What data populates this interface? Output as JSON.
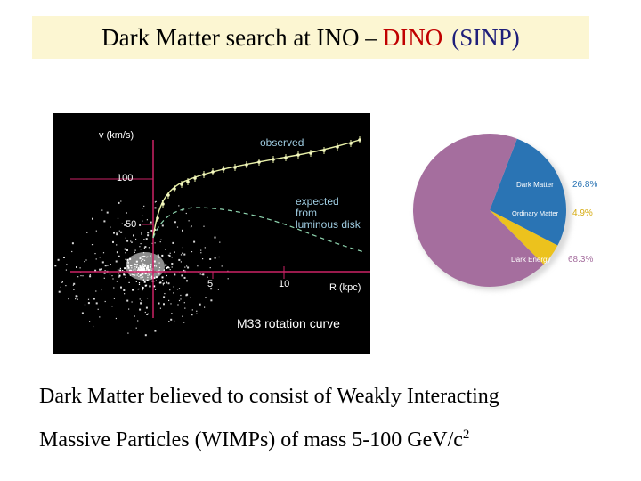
{
  "title": {
    "main": "Dark Matter search at INO – ",
    "dino": "DINO",
    "sinp": "(SINP)"
  },
  "rotation_figure": {
    "y_axis_label": "v (km/s)",
    "y_ticks": [
      "100",
      "50"
    ],
    "x_ticks": [
      "5",
      "10"
    ],
    "x_axis_label": "R (kpc)",
    "observed_label": "observed",
    "expected_label": [
      "expected",
      "from",
      "luminous disk"
    ],
    "figure_caption": "M33 rotation curve",
    "colors": {
      "background": "#000000",
      "axes": "#cc2266",
      "observed_curve": "#e8f0a8",
      "expected_curve": "#8fd6b0"
    }
  },
  "pie_chart": {
    "slices": [
      {
        "label": "Dark Matter",
        "percent": 26.8,
        "pct_label": "26.8%",
        "color": "#2a74b4"
      },
      {
        "label": "Ordinary Matter",
        "percent": 4.9,
        "pct_label": "4.9%",
        "color": "#ecc21d"
      },
      {
        "label": "Dark Energy",
        "percent": 68.3,
        "pct_label": "68.3%",
        "color": "#a56e9e"
      }
    ]
  },
  "caption": {
    "line1": "Dark Matter believed to consist of Weakly Interacting",
    "line2": "Massive Particles (WIMPs) of mass 5-100 GeV/c",
    "superscript": "2"
  }
}
